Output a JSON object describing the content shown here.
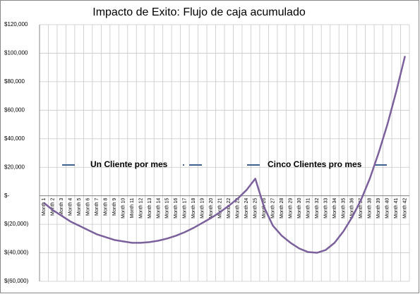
{
  "chart_data": {
    "type": "line",
    "title": "Impacto de Exito: Flujo de caja acumulado",
    "categories": [
      "Month 1",
      "Month 2",
      "Month 3",
      "Month 4",
      "Month 5",
      "Month 6",
      "Month 7",
      "Month 8",
      "Month 9",
      "Month 10",
      "Month 11",
      "Month 12",
      "Month 13",
      "Month 14",
      "Month 15",
      "Month 16",
      "Month 17",
      "Month 18",
      "Month 19",
      "Month 20",
      "Month 21",
      "Month 22",
      "Month 23",
      "Month 24",
      "Month 25",
      "Month 26",
      "Month 27",
      "Month 28",
      "Month 29",
      "Month 30",
      "Month 31",
      "Month 32",
      "Month 33",
      "Month 34",
      "Month 35",
      "Month 36",
      "Month 37",
      "Month 38",
      "Month 39",
      "Month 40",
      "Month 41",
      "Month 42"
    ],
    "values": [
      -5000,
      -10000,
      -14000,
      -18000,
      -21000,
      -24000,
      -27000,
      -29000,
      -31000,
      -32000,
      -33000,
      -33000,
      -32500,
      -31500,
      -30000,
      -28000,
      -25500,
      -22500,
      -19000,
      -15500,
      -11500,
      -7000,
      -2000,
      4000,
      12000,
      -8000,
      -21000,
      -28000,
      -33000,
      -37000,
      -39500,
      -40000,
      -38000,
      -33000,
      -25000,
      -15000,
      -3000,
      12000,
      30000,
      50000,
      73000,
      98000
    ],
    "color": "#7b609c",
    "ylim": [
      -60000,
      120000
    ],
    "yticks": [
      {
        "value": -60000,
        "label": "$(60,000)"
      },
      {
        "value": -40000,
        "label": "$(40,000)"
      },
      {
        "value": -20000,
        "label": "$(20,000)"
      },
      {
        "value": 0,
        "label": "$-"
      },
      {
        "value": 20000,
        "label": "$20,000"
      },
      {
        "value": 40000,
        "label": "$40,000"
      },
      {
        "value": 60000,
        "label": "$60,000"
      },
      {
        "value": 80000,
        "label": "$80,000"
      },
      {
        "value": 100000,
        "label": "$100,000"
      },
      {
        "value": 120000,
        "label": "$120,000"
      }
    ],
    "grid": true,
    "annotations": [
      "Un Cliente por mes",
      "Cinco Clientes pro mes"
    ]
  }
}
